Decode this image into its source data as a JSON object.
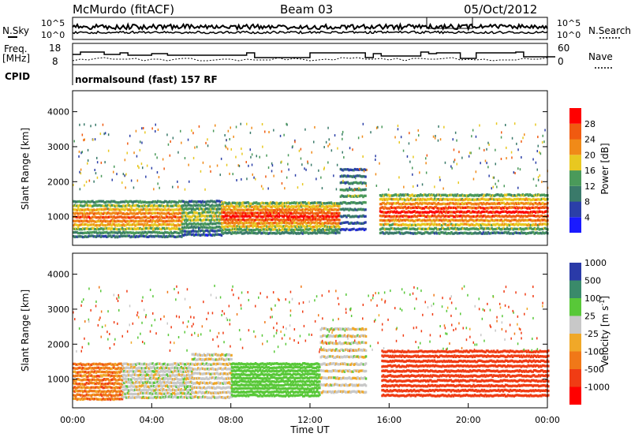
{
  "header": {
    "station": "McMurdo (fitACF)",
    "beam": "Beam 03",
    "date": "05/Oct/2012"
  },
  "noise_panel": {
    "left_label": "N.Sky",
    "right_label": "N.Search",
    "left_ticks": [
      "10^5",
      "10^0"
    ],
    "right_ticks": [
      "10^5",
      "10^0"
    ]
  },
  "freq_panel": {
    "left_label_1": "Freq.",
    "left_label_2": "[MHz]",
    "left_ticks": [
      "18",
      "8"
    ],
    "right_label": "Nave",
    "right_ticks": [
      "60",
      "0"
    ]
  },
  "cpid": {
    "label": "CPID",
    "text": "normalsound (fast) 157 RF"
  },
  "colors": {
    "scale_power": [
      "#1a1aff",
      "#2b3fa8",
      "#3a7a6a",
      "#4a9a5a",
      "#e8c820",
      "#f08a18",
      "#f05a10",
      "#ff0000"
    ],
    "scale_velocity": [
      "#ff0000",
      "#f03c14",
      "#f07818",
      "#f0a828",
      "#c8c8c8",
      "#58c838",
      "#3a8a6a",
      "#2a3aa8"
    ]
  },
  "chart_data": [
    {
      "type": "heatmap",
      "title": "",
      "xlabel": "",
      "ylabel": "Slant Range [km]",
      "xlim": [
        "00:00",
        "24:00"
      ],
      "ylim": [
        180,
        4600
      ],
      "y_ticks": [
        "1000",
        "2000",
        "3000",
        "4000"
      ],
      "colorbar": {
        "label": "Power [dB]",
        "range": [
          0,
          32
        ],
        "ticks": [
          "4",
          "8",
          "12",
          "16",
          "20",
          "24",
          "28"
        ]
      },
      "bands": [
        {
          "start_h": 0.0,
          "end_h": 5.5,
          "low_km": 400,
          "high_km": 1500,
          "peak_db": 26
        },
        {
          "start_h": 5.5,
          "end_h": 7.5,
          "low_km": 450,
          "high_km": 1500,
          "peak_db": 18
        },
        {
          "start_h": 7.5,
          "end_h": 13.5,
          "low_km": 500,
          "high_km": 1450,
          "peak_db": 30
        },
        {
          "start_h": 13.5,
          "end_h": 14.8,
          "low_km": 600,
          "high_km": 2500,
          "peak_db": 14
        },
        {
          "start_h": 15.5,
          "end_h": 24.0,
          "low_km": 500,
          "high_km": 1700,
          "peak_db": 30
        }
      ]
    },
    {
      "type": "heatmap",
      "title": "",
      "xlabel": "Time UT",
      "ylabel": "Slant Range [km]",
      "xlim": [
        "00:00",
        "24:00"
      ],
      "ylim": [
        180,
        4600
      ],
      "x_ticks": [
        "00:00",
        "04:00",
        "08:00",
        "12:00",
        "16:00",
        "20:00",
        "00:00"
      ],
      "y_ticks": [
        "1000",
        "2000",
        "3000",
        "4000"
      ],
      "colorbar": {
        "label": "Velocity [m s^-1]",
        "ticks": [
          "1000",
          "500",
          "100",
          "25",
          "-25",
          "-100",
          "-500",
          "-1000"
        ]
      },
      "bands": [
        {
          "start_h": 0.0,
          "end_h": 2.5,
          "low_km": 400,
          "high_km": 1500,
          "velocity": -60
        },
        {
          "start_h": 2.5,
          "end_h": 6.0,
          "low_km": 450,
          "high_km": 1500,
          "velocity": 60
        },
        {
          "start_h": 6.0,
          "end_h": 8.0,
          "low_km": 450,
          "high_km": 1800,
          "velocity": 50
        },
        {
          "start_h": 8.0,
          "end_h": 12.5,
          "low_km": 500,
          "high_km": 1500,
          "velocity": 300
        },
        {
          "start_h": 12.5,
          "end_h": 14.8,
          "low_km": 600,
          "high_km": 2600,
          "velocity": 50
        },
        {
          "start_h": 15.6,
          "end_h": 24.0,
          "low_km": 500,
          "high_km": 1900,
          "velocity": -200
        }
      ]
    }
  ]
}
